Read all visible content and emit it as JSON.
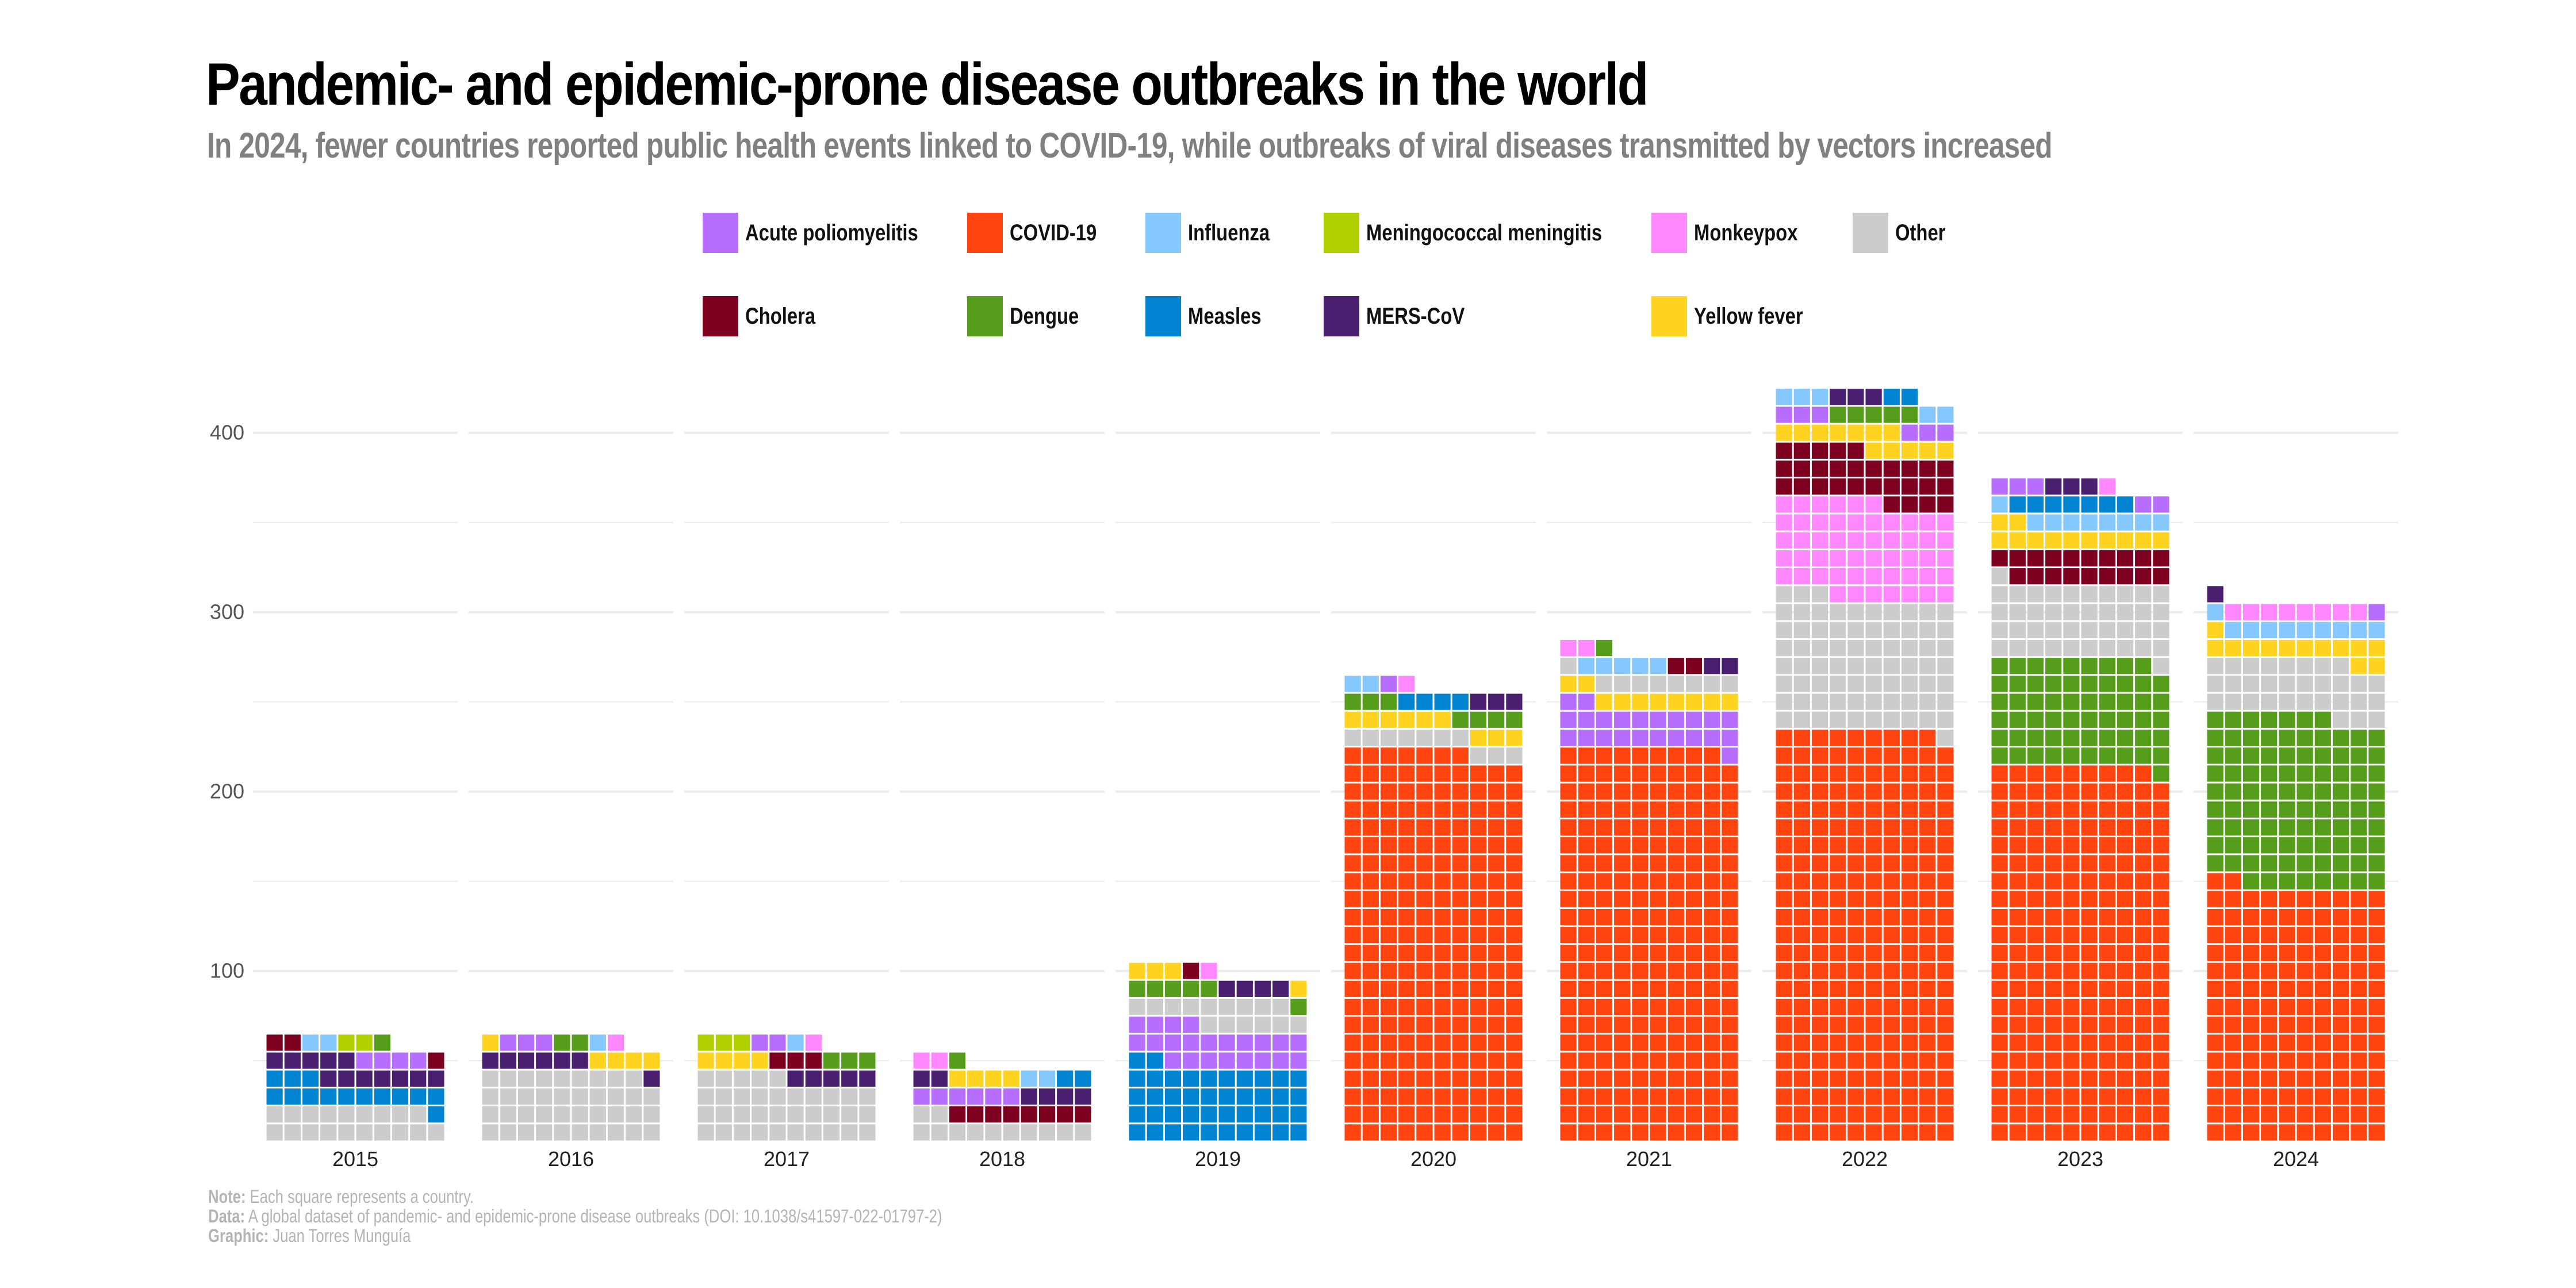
{
  "title": "Pandemic- and epidemic-prone disease outbreaks in the world",
  "subtitle": "In 2024, fewer countries reported public health events linked to COVID-19, while outbreaks of viral diseases transmitted by vectors increased",
  "legend": [
    {
      "key": "polio",
      "label": "Acute poliomyelitis",
      "color": "#B76EFF"
    },
    {
      "key": "covid",
      "label": "COVID-19",
      "color": "#FF4410"
    },
    {
      "key": "influenza",
      "label": "Influenza",
      "color": "#85C8FF"
    },
    {
      "key": "meningo",
      "label": "Meningococcal meningitis",
      "color": "#B0D000"
    },
    {
      "key": "monkeypox",
      "label": "Monkeypox",
      "color": "#FF88FF"
    },
    {
      "key": "other",
      "label": "Other",
      "color": "#CCCCCC"
    },
    {
      "key": "cholera",
      "label": "Cholera",
      "color": "#7D0020"
    },
    {
      "key": "dengue",
      "label": "Dengue",
      "color": "#579D1C"
    },
    {
      "key": "measles",
      "label": "Measles",
      "color": "#0084D1"
    },
    {
      "key": "mers",
      "label": "MERS-CoV",
      "color": "#4B1F6F"
    },
    {
      "key": "yellowfever",
      "label": "Yellow fever",
      "color": "#FFD320"
    }
  ],
  "footer": {
    "note_label": "Note:",
    "note_text": " Each square represents a country.",
    "data_label": "Data:",
    "data_text": " A global dataset of pandemic- and epidemic-prone disease outbreaks (DOI: 10.1038/s41597-022-01797-2)",
    "graphic_label": "Graphic:",
    "graphic_text": " Juan Torres Munguía"
  },
  "chart_data": {
    "type": "waffle",
    "title": "Pandemic- and epidemic-prone disease outbreaks in the world",
    "xlabel": "",
    "ylabel": "",
    "unit": "countries (1 square = 1 country)",
    "squares_per_row": 10,
    "y_ticks": [
      100,
      200,
      300,
      400
    ],
    "ylim": [
      0,
      430
    ],
    "grid": true,
    "legend_position": "top",
    "categories": [
      "2015",
      "2016",
      "2017",
      "2018",
      "2019",
      "2020",
      "2021",
      "2022",
      "2023",
      "2024"
    ],
    "stacks": [
      {
        "year": "2015",
        "segments": [
          [
            "other",
            19
          ],
          [
            "measles",
            14
          ],
          [
            "mers",
            12
          ],
          [
            "polio",
            4
          ],
          [
            "cholera",
            3
          ],
          [
            "influenza",
            2
          ],
          [
            "meningo",
            2
          ],
          [
            "dengue",
            1
          ]
        ]
      },
      {
        "year": "2016",
        "segments": [
          [
            "other",
            39
          ],
          [
            "mers",
            7
          ],
          [
            "yellowfever",
            5
          ],
          [
            "polio",
            3
          ],
          [
            "dengue",
            2
          ],
          [
            "influenza",
            1
          ],
          [
            "monkeypox",
            1
          ]
        ]
      },
      {
        "year": "2017",
        "segments": [
          [
            "other",
            35
          ],
          [
            "mers",
            5
          ],
          [
            "yellowfever",
            4
          ],
          [
            "cholera",
            3
          ],
          [
            "dengue",
            3
          ],
          [
            "meningo",
            3
          ],
          [
            "polio",
            2
          ],
          [
            "influenza",
            1
          ],
          [
            "monkeypox",
            1
          ]
        ]
      },
      {
        "year": "2018",
        "segments": [
          [
            "other",
            12
          ],
          [
            "cholera",
            8
          ],
          [
            "polio",
            6
          ],
          [
            "mers",
            6
          ],
          [
            "yellowfever",
            4
          ],
          [
            "influenza",
            2
          ],
          [
            "measles",
            2
          ],
          [
            "monkeypox",
            2
          ],
          [
            "dengue",
            1
          ]
        ]
      },
      {
        "year": "2019",
        "segments": [
          [
            "measles",
            42
          ],
          [
            "polio",
            22
          ],
          [
            "other",
            15
          ],
          [
            "dengue",
            6
          ],
          [
            "mers",
            4
          ],
          [
            "yellowfever",
            4
          ],
          [
            "cholera",
            1
          ],
          [
            "monkeypox",
            1
          ]
        ]
      },
      {
        "year": "2020",
        "segments": [
          [
            "covid",
            217
          ],
          [
            "other",
            10
          ],
          [
            "yellowfever",
            9
          ],
          [
            "dengue",
            7
          ],
          [
            "measles",
            4
          ],
          [
            "mers",
            3
          ],
          [
            "influenza",
            2
          ],
          [
            "polio",
            1
          ],
          [
            "monkeypox",
            1
          ]
        ]
      },
      {
        "year": "2021",
        "segments": [
          [
            "covid",
            219
          ],
          [
            "polio",
            23
          ],
          [
            "yellowfever",
            10
          ],
          [
            "other",
            9
          ],
          [
            "influenza",
            5
          ],
          [
            "cholera",
            2
          ],
          [
            "mers",
            2
          ],
          [
            "monkeypox",
            2
          ],
          [
            "dengue",
            1
          ]
        ]
      },
      {
        "year": "2022",
        "segments": [
          [
            "covid",
            229
          ],
          [
            "other",
            74
          ],
          [
            "monkeypox",
            53
          ],
          [
            "cholera",
            29
          ],
          [
            "yellowfever",
            12
          ],
          [
            "polio",
            6
          ],
          [
            "dengue",
            5
          ],
          [
            "influenza",
            5
          ],
          [
            "mers",
            3
          ],
          [
            "measles",
            2
          ]
        ]
      },
      {
        "year": "2023",
        "segments": [
          [
            "covid",
            209
          ],
          [
            "dengue",
            60
          ],
          [
            "other",
            42
          ],
          [
            "cholera",
            19
          ],
          [
            "yellowfever",
            12
          ],
          [
            "influenza",
            9
          ],
          [
            "measles",
            7
          ],
          [
            "polio",
            5
          ],
          [
            "mers",
            3
          ],
          [
            "monkeypox",
            1
          ]
        ]
      },
      {
        "year": "2024",
        "segments": [
          [
            "covid",
            142
          ],
          [
            "dengue",
            95
          ],
          [
            "other",
            31
          ],
          [
            "yellowfever",
            13
          ],
          [
            "influenza",
            10
          ],
          [
            "monkeypox",
            8
          ],
          [
            "polio",
            1
          ],
          [
            "mers",
            1
          ]
        ]
      }
    ],
    "totals": {
      "2015": 57,
      "2016": 58,
      "2017": 57,
      "2018": 43,
      "2019": 95,
      "2020": 254,
      "2021": 273,
      "2022": 418,
      "2023": 367,
      "2024": 301
    }
  }
}
